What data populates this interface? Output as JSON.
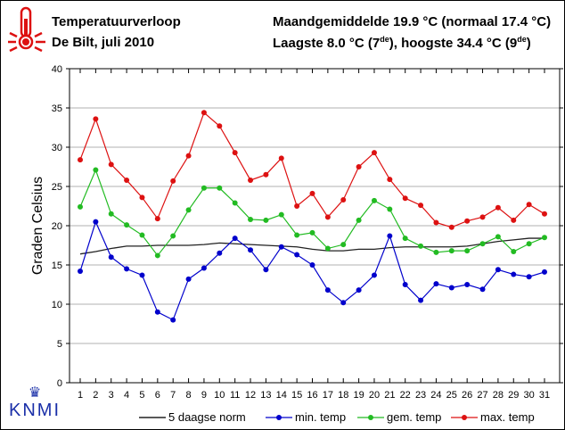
{
  "header": {
    "title": "Temperatuurverloop",
    "subtitle": "De Bilt, juli 2010",
    "monthly_avg": "Maandgemiddelde 19.9 °C (normaal 17.4 °C)",
    "extremes_prefix": "Laagste 8.0 °C (7",
    "extremes_sup1": "de",
    "extremes_mid": "), hoogste 34.4 °C (9",
    "extremes_sup2": "de",
    "extremes_suffix": ")"
  },
  "logo": {
    "text": "KNMI"
  },
  "colors": {
    "min": "#0000cc",
    "gem": "#22bb22",
    "max": "#dd1111",
    "norm": "#222222",
    "grid": "#b0b0b0"
  },
  "chart_data": {
    "type": "line",
    "title": "Temperatuurverloop",
    "ylabel": "Graden Celsius",
    "xlabel": "",
    "ylim": [
      0,
      40
    ],
    "yticks": [
      0,
      5,
      10,
      15,
      20,
      25,
      30,
      35,
      40
    ],
    "x": [
      1,
      2,
      3,
      4,
      5,
      6,
      7,
      8,
      9,
      10,
      11,
      12,
      13,
      14,
      15,
      16,
      17,
      18,
      19,
      20,
      21,
      22,
      23,
      24,
      25,
      26,
      27,
      28,
      29,
      30,
      31
    ],
    "grid": true,
    "legend_position": "bottom",
    "series": [
      {
        "name": "5 daagse norm",
        "key": "norm",
        "values": [
          16.4,
          16.7,
          17.1,
          17.4,
          17.4,
          17.5,
          17.5,
          17.5,
          17.6,
          17.8,
          17.7,
          17.6,
          17.5,
          17.4,
          17.3,
          17.0,
          16.8,
          16.8,
          17.0,
          17.0,
          17.2,
          17.3,
          17.3,
          17.3,
          17.3,
          17.4,
          17.7,
          18.0,
          18.2,
          18.4,
          18.4
        ]
      },
      {
        "name": "min. temp",
        "key": "min",
        "values": [
          14.2,
          20.5,
          16.0,
          14.5,
          13.7,
          9.0,
          8.0,
          13.2,
          14.6,
          16.5,
          18.4,
          16.9,
          14.4,
          17.3,
          16.3,
          15.0,
          11.8,
          10.2,
          11.8,
          13.7,
          18.7,
          12.5,
          10.5,
          12.6,
          12.1,
          12.5,
          11.9,
          14.4,
          13.8,
          13.5,
          14.1
        ]
      },
      {
        "name": "gem. temp",
        "key": "gem",
        "values": [
          22.4,
          27.1,
          21.5,
          20.1,
          18.8,
          16.2,
          18.7,
          22.0,
          24.8,
          24.8,
          22.9,
          20.8,
          20.7,
          21.4,
          18.8,
          19.1,
          17.1,
          17.6,
          20.7,
          23.2,
          22.1,
          18.4,
          17.4,
          16.6,
          16.8,
          16.8,
          17.7,
          18.6,
          16.7,
          17.7,
          18.5
        ]
      },
      {
        "name": "max. temp",
        "key": "max",
        "values": [
          28.4,
          33.6,
          27.8,
          25.8,
          23.6,
          20.9,
          25.7,
          28.9,
          34.4,
          32.7,
          29.3,
          25.8,
          26.5,
          28.6,
          22.5,
          24.1,
          21.1,
          23.3,
          27.5,
          29.3,
          25.9,
          23.5,
          22.6,
          20.4,
          19.8,
          20.6,
          21.1,
          22.3,
          20.7,
          22.7,
          21.5
        ]
      }
    ]
  }
}
